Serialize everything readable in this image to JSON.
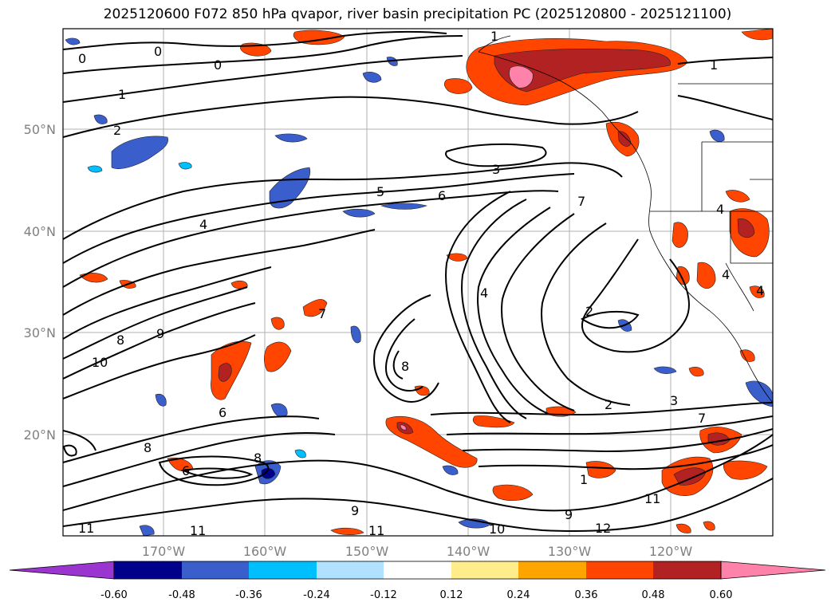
{
  "title": "2025120600 F072 850 hPa qvapor, river basin precipitation PC (2025120800 - 2025121100)",
  "map": {
    "lon_ticks": [
      "170°W",
      "160°W",
      "150°W",
      "140°W",
      "130°W",
      "120°W"
    ],
    "lat_ticks": [
      "50°N",
      "40°N",
      "30°N",
      "20°N"
    ],
    "contour_labels": [
      "0",
      "0",
      "0",
      "1",
      "1",
      "2",
      "3",
      "4",
      "5",
      "6",
      "7",
      "4",
      "4",
      "8",
      "9",
      "10",
      "2",
      "8",
      "8",
      "6",
      "6",
      "8",
      "9",
      "9",
      "10",
      "11",
      "11",
      "11",
      "12",
      "11",
      "2",
      "3",
      "7",
      "7",
      "1",
      "1",
      "4",
      "4"
    ]
  },
  "colorbar": {
    "labels": [
      "-0.60",
      "-0.48",
      "-0.36",
      "-0.24",
      "-0.12",
      "0.12",
      "0.24",
      "0.36",
      "0.48",
      "0.60"
    ],
    "colors": [
      "#9a35d0",
      "#00008b",
      "#3a5fcd",
      "#00bfff",
      "#b0e2ff",
      "#ffffff",
      "#ffec8b",
      "#ffa500",
      "#ff4500",
      "#b22222",
      "#ff82ab"
    ]
  }
}
